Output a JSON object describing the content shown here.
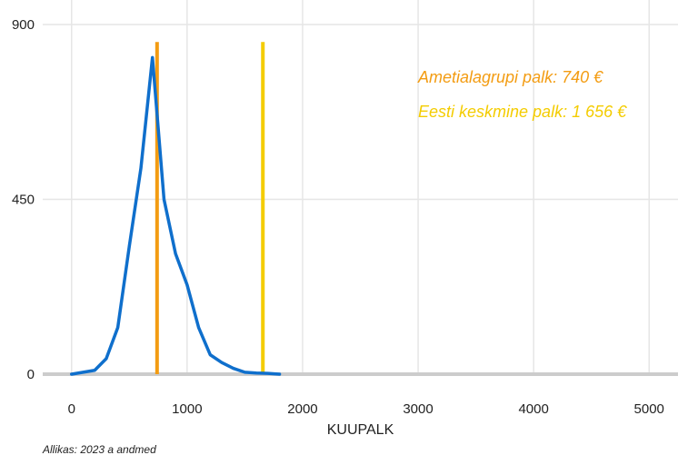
{
  "chart_data": {
    "type": "line",
    "xlabel": "KUUPALK",
    "ylabel": "",
    "xlim": [
      -250,
      5250
    ],
    "ylim": [
      0,
      900
    ],
    "x_ticks": [
      0,
      1000,
      2000,
      3000,
      4000,
      5000
    ],
    "y_ticks": [
      0,
      450,
      900
    ],
    "grid": true,
    "series": [
      {
        "color": "#0f6fcc",
        "x": [
          0,
          100,
          200,
          300,
          400,
          500,
          600,
          700,
          800,
          900,
          1000,
          1100,
          1200,
          1300,
          1400,
          1500,
          1600,
          1700,
          1800
        ],
        "y": [
          0,
          5,
          10,
          40,
          120,
          330,
          530,
          815,
          450,
          310,
          230,
          120,
          50,
          30,
          15,
          5,
          3,
          2,
          0
        ]
      }
    ],
    "vlines": [
      {
        "x": 740,
        "label": "Ametialagrupi palk: 740 €",
        "color": "#f39c12"
      },
      {
        "x": 1656,
        "label": "Eesti keskmine palk: 1 656 €",
        "color": "#f4cc00"
      }
    ]
  },
  "source_text": "Allikas: 2023 a andmed"
}
